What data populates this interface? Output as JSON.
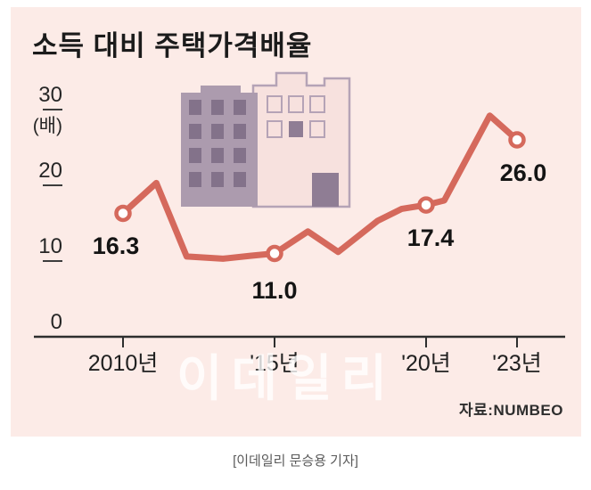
{
  "title": "소득 대비 주택가격배율",
  "watermark": "이데일리",
  "source": "자료:NUMBEO",
  "caption": "[이데일리 문승용 기자]",
  "colors": {
    "background": "#fcebe7",
    "line": "#d5695c",
    "building": "#a897ab",
    "axis": "#2e2e2e"
  },
  "chart_data": {
    "type": "line",
    "title": "소득 대비 주택가격배율",
    "ylabel": "(배)",
    "ylim": [
      0,
      30
    ],
    "yticks": [
      0,
      10,
      20,
      30
    ],
    "x_tick_labels": [
      "2010년",
      "'15년",
      "'20년",
      "'23년"
    ],
    "x_tick_years": [
      2010,
      2015,
      2020,
      2023
    ],
    "grid": false,
    "legend": null,
    "source": "자료:NUMBEO",
    "labeled_points": [
      {
        "year": 2010,
        "value": 16.3,
        "label": "16.3"
      },
      {
        "year": 2015,
        "value": 11.0,
        "label": "11.0"
      },
      {
        "year": 2020,
        "value": 17.4,
        "label": "17.4"
      },
      {
        "year": 2023,
        "value": 26.0,
        "label": "26.0"
      }
    ],
    "line_points": [
      {
        "year": 2010.0,
        "value": 16.3
      },
      {
        "year": 2011.1,
        "value": 20.3
      },
      {
        "year": 2012.1,
        "value": 10.6
      },
      {
        "year": 2013.3,
        "value": 10.3
      },
      {
        "year": 2014.2,
        "value": 10.7
      },
      {
        "year": 2015.0,
        "value": 11.0
      },
      {
        "year": 2016.1,
        "value": 13.9
      },
      {
        "year": 2017.1,
        "value": 11.2
      },
      {
        "year": 2018.4,
        "value": 15.3
      },
      {
        "year": 2019.2,
        "value": 16.9
      },
      {
        "year": 2020.0,
        "value": 17.4
      },
      {
        "year": 2020.6,
        "value": 18.0
      },
      {
        "year": 2022.1,
        "value": 29.2
      },
      {
        "year": 2023.0,
        "value": 26.0
      }
    ]
  }
}
